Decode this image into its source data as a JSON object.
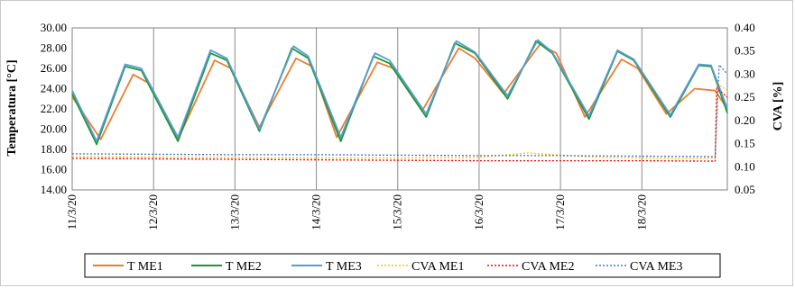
{
  "chart_data": {
    "type": "line",
    "ylabel": "Temperatura [°C]",
    "y2label": "CVA [%]",
    "ylim": [
      14,
      30
    ],
    "y2lim": [
      0.05,
      0.4
    ],
    "yticks": [
      "14.00",
      "16.00",
      "18.00",
      "20.00",
      "22.00",
      "24.00",
      "26.00",
      "28.00",
      "30.00"
    ],
    "y2ticks": [
      "0.05",
      "0.10",
      "0.15",
      "0.20",
      "0.25",
      "0.30",
      "0.35",
      "0.40"
    ],
    "xlim": [
      0,
      8.05
    ],
    "xticks": [
      {
        "label": "11/3/20",
        "x": 0
      },
      {
        "label": "12/3/20",
        "x": 1
      },
      {
        "label": "13/3/20",
        "x": 2
      },
      {
        "label": "14/3/20",
        "x": 3
      },
      {
        "label": "15/3/20",
        "x": 4
      },
      {
        "label": "16/3/20",
        "x": 5
      },
      {
        "label": "17/3/20",
        "x": 6
      },
      {
        "label": "18/3/20",
        "x": 7
      }
    ],
    "grid": "vertical",
    "legend_position": "bottom",
    "series": [
      {
        "name": "T ME1",
        "axis": "left",
        "color": "#ed7d31",
        "dash": "solid",
        "x": [
          0,
          0.35,
          0.75,
          0.95,
          1.3,
          1.75,
          1.95,
          2.3,
          2.75,
          2.95,
          3.25,
          3.75,
          3.95,
          4.3,
          4.75,
          4.95,
          5.3,
          5.75,
          5.95,
          6.3,
          6.75,
          6.95,
          7.3,
          7.65,
          7.9,
          8.05
        ],
        "y": [
          23.2,
          19.0,
          25.4,
          24.5,
          19.0,
          26.8,
          26.0,
          20.2,
          27.0,
          26.2,
          19.2,
          26.6,
          26.0,
          21.8,
          28.0,
          27.0,
          23.5,
          28.4,
          27.5,
          21.2,
          26.9,
          26.0,
          21.5,
          24.0,
          23.8,
          22.0
        ]
      },
      {
        "name": "T ME2",
        "axis": "left",
        "color": "#1a9933",
        "dash": "solid",
        "x": [
          0,
          0.3,
          0.65,
          0.85,
          1.3,
          1.7,
          1.9,
          2.3,
          2.7,
          2.9,
          3.3,
          3.7,
          3.9,
          4.35,
          4.7,
          4.95,
          5.35,
          5.7,
          5.9,
          6.35,
          6.7,
          6.9,
          7.35,
          7.7,
          7.85,
          8.05
        ],
        "y": [
          23.5,
          18.5,
          26.2,
          25.8,
          18.8,
          27.5,
          26.8,
          19.8,
          28.0,
          27.0,
          18.8,
          27.2,
          26.5,
          21.2,
          28.5,
          27.5,
          23.0,
          28.7,
          27.5,
          21.0,
          27.7,
          26.8,
          21.2,
          26.3,
          26.2,
          21.6
        ]
      },
      {
        "name": "T ME3",
        "axis": "left",
        "color": "#5b9bd5",
        "dash": "solid",
        "x": [
          0,
          0.3,
          0.65,
          0.85,
          1.3,
          1.7,
          1.9,
          2.3,
          2.72,
          2.9,
          3.3,
          3.72,
          3.9,
          4.35,
          4.72,
          4.95,
          5.35,
          5.72,
          5.9,
          6.35,
          6.7,
          6.9,
          7.35,
          7.7,
          7.85,
          8.05
        ],
        "y": [
          23.8,
          18.8,
          26.4,
          26.0,
          19.2,
          27.8,
          27.0,
          20.0,
          28.2,
          27.2,
          19.2,
          27.5,
          26.8,
          21.5,
          28.7,
          27.6,
          23.3,
          28.8,
          27.6,
          21.3,
          27.8,
          26.9,
          21.4,
          26.4,
          26.3,
          22.0
        ]
      },
      {
        "name": "CVA ME1",
        "axis": "right",
        "color": "#ffc000",
        "dash": "dotted",
        "x": [
          0,
          1,
          2,
          3,
          4,
          5,
          5.6,
          6,
          6.5,
          7,
          7.5,
          7.9,
          7.92,
          8.05
        ],
        "y": [
          0.122,
          0.121,
          0.12,
          0.119,
          0.119,
          0.12,
          0.13,
          0.125,
          0.12,
          0.119,
          0.118,
          0.119,
          0.28,
          0.265
        ]
      },
      {
        "name": "CVA ME2",
        "axis": "right",
        "color": "#ff0000",
        "dash": "dotted",
        "x": [
          0,
          1,
          2,
          3,
          4,
          5,
          6,
          7,
          7.9,
          7.92,
          8.05
        ],
        "y": [
          0.118,
          0.117,
          0.116,
          0.115,
          0.114,
          0.113,
          0.113,
          0.113,
          0.112,
          0.27,
          0.25
        ]
      },
      {
        "name": "CVA ME3",
        "axis": "right",
        "color": "#4472c4",
        "dash": "dotted",
        "x": [
          0,
          1,
          2,
          3,
          4,
          5,
          6,
          7,
          7.9,
          7.95,
          8.05
        ],
        "y": [
          0.128,
          0.127,
          0.126,
          0.126,
          0.125,
          0.124,
          0.124,
          0.123,
          0.122,
          0.32,
          0.3
        ]
      }
    ]
  }
}
